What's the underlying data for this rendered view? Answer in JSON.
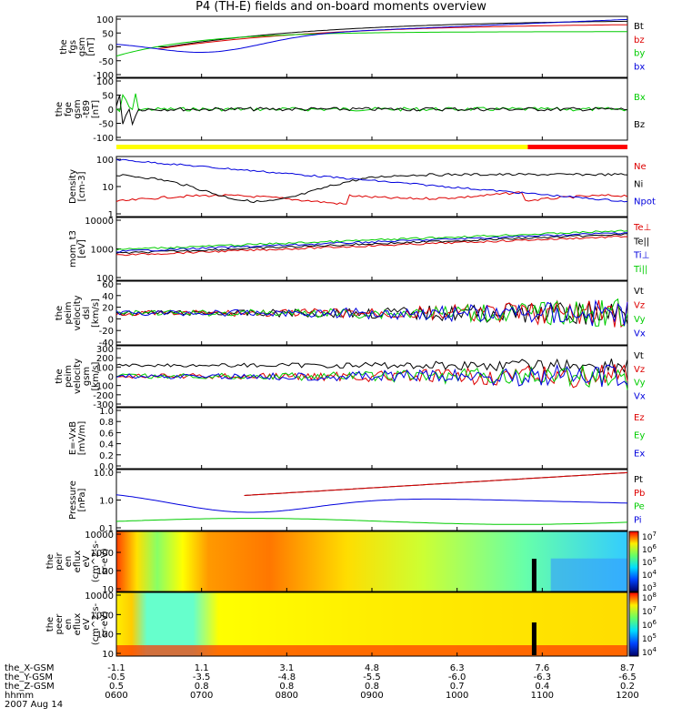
{
  "title": "P4 (TH-E) fields and on-board moments overview",
  "colors": {
    "black": "#000000",
    "red": "#dd0000",
    "green": "#00cc00",
    "blue": "#0000dd",
    "yellow": "#ffff00",
    "cyan": "#00cccc"
  },
  "chart_data": [
    {
      "type": "line",
      "ylabel": [
        "the",
        "fgs",
        "gsm",
        "[nT]"
      ],
      "yticks": [
        "100",
        "50",
        "0",
        "-50",
        "-100"
      ],
      "ylim": [
        -100,
        100
      ],
      "legend": [
        "Bt",
        "bz",
        "by",
        "bx"
      ],
      "legend_colors": [
        "black",
        "red",
        "green",
        "blue"
      ]
    },
    {
      "type": "line",
      "ylabel": [
        "the",
        "fge",
        "gsm",
        "-t89",
        "[nT]"
      ],
      "yticks": [
        "100",
        "50",
        "0",
        "-50",
        "-100"
      ],
      "ylim": [
        -120,
        110
      ],
      "legend": [
        "Bx",
        "Bz"
      ],
      "legend_colors": [
        "green",
        "black"
      ]
    },
    {
      "type": "line",
      "ylabel": [
        "Density",
        "[cm-3]"
      ],
      "yticks": [
        "100",
        "10",
        "1"
      ],
      "yscale": "log",
      "legend": [
        "Ne",
        "Ni",
        "Npot"
      ],
      "legend_colors": [
        "red",
        "black",
        "blue"
      ]
    },
    {
      "type": "line",
      "ylabel": [
        "mom_t3",
        "[eV]"
      ],
      "yticks": [
        "10000",
        "1000",
        "100"
      ],
      "yscale": "log",
      "legend": [
        "Te⊥",
        "Te||",
        "Ti⊥",
        "Ti||"
      ],
      "legend_colors": [
        "red",
        "black",
        "blue",
        "green"
      ]
    },
    {
      "type": "line",
      "ylabel": [
        "the",
        "peim",
        "velocity",
        "dsl",
        "[km/s]"
      ],
      "yticks": [
        "60",
        "40",
        "20",
        "0",
        "-20",
        "-40"
      ],
      "ylim": [
        -40,
        60
      ],
      "legend": [
        "Vt",
        "Vz",
        "Vy",
        "Vx"
      ],
      "legend_colors": [
        "black",
        "red",
        "green",
        "blue"
      ]
    },
    {
      "type": "line",
      "ylabel": [
        "the",
        "peim",
        "velocity",
        "gsm",
        "[km/s]"
      ],
      "yticks": [
        "300",
        "200",
        "100",
        "0",
        "-100",
        "-200",
        "-300"
      ],
      "ylim": [
        -300,
        300
      ],
      "legend": [
        "Vt",
        "Vz",
        "Vy",
        "Vx"
      ],
      "legend_colors": [
        "black",
        "red",
        "green",
        "blue"
      ]
    },
    {
      "type": "line",
      "ylabel": [
        "E=-VxB",
        "[mV/m]"
      ],
      "yticks": [
        "1.0",
        "0.8",
        "0.6",
        "0.4",
        "0.2",
        "0.0"
      ],
      "ylim": [
        0,
        1
      ],
      "legend": [
        "Ez",
        "Ey",
        "Ex"
      ],
      "legend_colors": [
        "red",
        "green",
        "blue"
      ]
    },
    {
      "type": "line",
      "ylabel": [
        "Pressure",
        "[nPa]"
      ],
      "yticks": [
        "10.0",
        "1.0",
        "0.1"
      ],
      "yscale": "log",
      "legend": [
        "Pt",
        "Pb",
        "Pe",
        "Pi"
      ],
      "legend_colors": [
        "black",
        "red",
        "green",
        "blue"
      ]
    },
    {
      "type": "heatmap",
      "ylabel": [
        "the",
        "peir",
        "en",
        "eflux",
        "eV",
        "(cm^2-s-",
        "sr-eV)"
      ],
      "yticks": [
        "10000",
        "1000",
        "100",
        "10"
      ],
      "colorbar_ticks": [
        "10^7",
        "10^6",
        "10^5",
        "10^4",
        "10^3"
      ]
    },
    {
      "type": "heatmap",
      "ylabel": [
        "the",
        "peer",
        "en",
        "eflux",
        "eV",
        "(cm^2-s-",
        "sr-eV)"
      ],
      "yticks": [
        "10000",
        "1000",
        "100",
        "10"
      ],
      "colorbar_ticks": [
        "10^8",
        "10^7",
        "10^6",
        "10^5",
        "10^4"
      ]
    }
  ],
  "xaxis": {
    "rows": [
      {
        "label": "the_X-GSM",
        "values": [
          "-1.1",
          "1.1",
          "3.1",
          "4.8",
          "6.3",
          "7.6",
          "8.7"
        ]
      },
      {
        "label": "the_Y-GSM",
        "values": [
          "-0.5",
          "-3.5",
          "-4.8",
          "-5.5",
          "-6.0",
          "-6.3",
          "-6.5"
        ]
      },
      {
        "label": "the_Z-GSM",
        "values": [
          "0.5",
          "0.8",
          "0.8",
          "0.8",
          "0.7",
          "0.4",
          "0.2"
        ]
      },
      {
        "label": "hhmm",
        "values": [
          "0600",
          "0700",
          "0800",
          "0900",
          "1000",
          "1100",
          "1200"
        ]
      }
    ],
    "date": "2007 Aug 14"
  }
}
